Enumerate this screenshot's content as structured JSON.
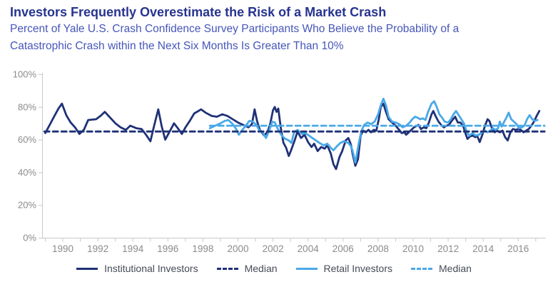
{
  "header": {
    "title": "Investors Frequently Overestimate the Risk of a Market Crash",
    "subtitle_line1": "Percent of Yale U.S. Crash Confidence Survey Participants Who Believe the Probability of a",
    "subtitle_line2": "Catastrophic Crash within the Next Six Months Is Greater Than 10%"
  },
  "colors": {
    "title_navy": "#27348f",
    "subtitle_blue": "#4656b8",
    "institutional_navy": "#1f3177",
    "retail_light_blue": "#49a8e8",
    "axis_grey": "#c9c9c9",
    "tick_label_grey": "#8b8b8b"
  },
  "chart_data": {
    "type": "line",
    "title": "Investors Frequently Overestimate the Risk of a Market Crash",
    "subtitle": "Percent of Yale U.S. Crash Confidence Survey Participants Who Believe the Probability of a Catastrophic Crash within the Next Six Months Is Greater Than 10%",
    "grid": false,
    "x_axis": {
      "label_years": [
        1990,
        1992,
        1994,
        1996,
        1998,
        2000,
        2002,
        2004,
        2006,
        2008,
        2010,
        2012,
        2014,
        2016
      ],
      "tick_start": 1989,
      "tick_end": 2017,
      "range": [
        1988.8,
        2017.6
      ]
    },
    "y_axis": {
      "tick_values": [
        0,
        20,
        40,
        60,
        80,
        100
      ],
      "tick_labels": [
        "0%",
        "20%",
        "40%",
        "60%",
        "80%",
        "100%"
      ],
      "range": [
        0,
        100
      ]
    },
    "series": [
      {
        "key": "institutional-investors-line",
        "name": "Institutional Investors",
        "color": "#1f3177",
        "style": "solid",
        "points": [
          [
            1989.0,
            64
          ],
          [
            1989.25,
            69
          ],
          [
            1989.5,
            74
          ],
          [
            1989.75,
            79
          ],
          [
            1989.95,
            82
          ],
          [
            1990.2,
            75
          ],
          [
            1990.45,
            70.5
          ],
          [
            1990.7,
            67.5
          ],
          [
            1990.95,
            63.5
          ],
          [
            1991.2,
            66
          ],
          [
            1991.45,
            72
          ],
          [
            1991.9,
            72.5
          ],
          [
            1992.15,
            74.5
          ],
          [
            1992.4,
            77
          ],
          [
            1992.7,
            73.5
          ],
          [
            1993.0,
            70
          ],
          [
            1993.3,
            67.5
          ],
          [
            1993.6,
            66
          ],
          [
            1993.85,
            68.5
          ],
          [
            1994.2,
            67
          ],
          [
            1994.5,
            66.5
          ],
          [
            1994.75,
            63
          ],
          [
            1995.0,
            59
          ],
          [
            1995.2,
            68
          ],
          [
            1995.45,
            78.5
          ],
          [
            1995.65,
            68
          ],
          [
            1995.85,
            60
          ],
          [
            1996.1,
            65
          ],
          [
            1996.35,
            70
          ],
          [
            1996.6,
            66.5
          ],
          [
            1996.8,
            63.5
          ],
          [
            1997.0,
            67.5
          ],
          [
            1997.25,
            71.5
          ],
          [
            1997.5,
            76
          ],
          [
            1997.9,
            78.5
          ],
          [
            1998.15,
            76.5
          ],
          [
            1998.5,
            74.5
          ],
          [
            1998.8,
            74
          ],
          [
            1999.1,
            75.5
          ],
          [
            1999.4,
            74.5
          ],
          [
            1999.7,
            72.5
          ],
          [
            2000.0,
            70.5
          ],
          [
            2000.3,
            69
          ],
          [
            2000.6,
            67.5
          ],
          [
            2000.8,
            69.5
          ],
          [
            2000.95,
            78.5
          ],
          [
            2001.1,
            71
          ],
          [
            2001.25,
            66
          ],
          [
            2001.5,
            62.5
          ],
          [
            2001.7,
            65
          ],
          [
            2001.85,
            70
          ],
          [
            2002.0,
            78
          ],
          [
            2002.1,
            80
          ],
          [
            2002.2,
            77
          ],
          [
            2002.3,
            79
          ],
          [
            2002.45,
            67
          ],
          [
            2002.6,
            58
          ],
          [
            2002.75,
            55
          ],
          [
            2002.9,
            50
          ],
          [
            2003.05,
            54
          ],
          [
            2003.25,
            60
          ],
          [
            2003.4,
            65
          ],
          [
            2003.6,
            61
          ],
          [
            2003.8,
            63
          ],
          [
            2004.0,
            58.5
          ],
          [
            2004.2,
            55.5
          ],
          [
            2004.35,
            57.5
          ],
          [
            2004.55,
            53
          ],
          [
            2004.75,
            55.5
          ],
          [
            2004.95,
            54.5
          ],
          [
            2005.1,
            56.5
          ],
          [
            2005.3,
            51.5
          ],
          [
            2005.45,
            45
          ],
          [
            2005.6,
            42
          ],
          [
            2005.8,
            49.5
          ],
          [
            2005.95,
            53
          ],
          [
            2006.15,
            59.5
          ],
          [
            2006.3,
            61
          ],
          [
            2006.45,
            57
          ],
          [
            2006.55,
            51
          ],
          [
            2006.7,
            44
          ],
          [
            2006.85,
            48
          ],
          [
            2007.0,
            62.5
          ],
          [
            2007.15,
            65.5
          ],
          [
            2007.3,
            64.5
          ],
          [
            2007.45,
            66
          ],
          [
            2007.6,
            64.5
          ],
          [
            2007.75,
            66
          ],
          [
            2007.9,
            65.5
          ],
          [
            2008.05,
            73
          ],
          [
            2008.15,
            80
          ],
          [
            2008.3,
            82
          ],
          [
            2008.45,
            77
          ],
          [
            2008.6,
            72.5
          ],
          [
            2008.8,
            70.5
          ],
          [
            2009.0,
            68.5
          ],
          [
            2009.2,
            66
          ],
          [
            2009.35,
            64
          ],
          [
            2009.5,
            64.5
          ],
          [
            2009.6,
            63
          ],
          [
            2009.75,
            64.5
          ],
          [
            2009.9,
            66
          ],
          [
            2010.05,
            67.5
          ],
          [
            2010.3,
            69
          ],
          [
            2010.45,
            66.5
          ],
          [
            2010.6,
            67.5
          ],
          [
            2010.75,
            67
          ],
          [
            2010.9,
            70.5
          ],
          [
            2011.05,
            75.5
          ],
          [
            2011.15,
            77.5
          ],
          [
            2011.3,
            74
          ],
          [
            2011.45,
            71
          ],
          [
            2011.6,
            69
          ],
          [
            2011.75,
            67.5
          ],
          [
            2011.9,
            68.5
          ],
          [
            2012.05,
            69
          ],
          [
            2012.2,
            71.5
          ],
          [
            2012.4,
            74
          ],
          [
            2012.55,
            70.5
          ],
          [
            2012.7,
            70.5
          ],
          [
            2012.85,
            68.5
          ],
          [
            2013.0,
            63.5
          ],
          [
            2013.1,
            60.5
          ],
          [
            2013.25,
            62
          ],
          [
            2013.4,
            62.5
          ],
          [
            2013.55,
            61.5
          ],
          [
            2013.65,
            62.5
          ],
          [
            2013.8,
            58.5
          ],
          [
            2013.95,
            63
          ],
          [
            2014.1,
            68.5
          ],
          [
            2014.25,
            72.5
          ],
          [
            2014.35,
            71.5
          ],
          [
            2014.5,
            67
          ],
          [
            2014.65,
            64.5
          ],
          [
            2014.8,
            65.5
          ],
          [
            2014.95,
            64.5
          ],
          [
            2015.1,
            65.5
          ],
          [
            2015.25,
            61.5
          ],
          [
            2015.4,
            59.5
          ],
          [
            2015.55,
            64.5
          ],
          [
            2015.7,
            66.5
          ],
          [
            2015.85,
            66
          ],
          [
            2016.0,
            66.5
          ],
          [
            2016.15,
            66
          ],
          [
            2016.3,
            64.5
          ],
          [
            2016.45,
            65.5
          ],
          [
            2016.6,
            66.5
          ],
          [
            2016.75,
            68.5
          ],
          [
            2016.9,
            71
          ],
          [
            2017.05,
            74.5
          ],
          [
            2017.2,
            77.5
          ]
        ]
      },
      {
        "key": "institutional-median-line",
        "name": "Median (Institutional)",
        "color": "#1f3177",
        "style": "dashed",
        "median_value": 65,
        "points": [
          [
            1988.95,
            65
          ],
          [
            2017.5,
            65
          ]
        ]
      },
      {
        "key": "retail-investors-line",
        "name": "Retail Investors",
        "color": "#49a8e8",
        "style": "solid",
        "points": [
          [
            1998.4,
            67
          ],
          [
            1998.7,
            68.5
          ],
          [
            1999.0,
            70
          ],
          [
            1999.25,
            71.5
          ],
          [
            1999.45,
            72
          ],
          [
            1999.7,
            69.5
          ],
          [
            1999.9,
            66.5
          ],
          [
            2000.05,
            63
          ],
          [
            2000.25,
            66
          ],
          [
            2000.45,
            68.5
          ],
          [
            2000.65,
            71.5
          ],
          [
            2000.85,
            71
          ],
          [
            2001.05,
            69
          ],
          [
            2001.2,
            66
          ],
          [
            2001.4,
            64.5
          ],
          [
            2001.6,
            61
          ],
          [
            2001.8,
            66
          ],
          [
            2001.95,
            71
          ],
          [
            2002.1,
            70.5
          ],
          [
            2002.3,
            66
          ],
          [
            2002.5,
            62.5
          ],
          [
            2002.7,
            60.5
          ],
          [
            2002.9,
            59.5
          ],
          [
            2003.05,
            58
          ],
          [
            2003.2,
            64.5
          ],
          [
            2003.4,
            66
          ],
          [
            2003.65,
            63.5
          ],
          [
            2003.85,
            64
          ],
          [
            2004.05,
            62.5
          ],
          [
            2004.25,
            61
          ],
          [
            2004.45,
            59.5
          ],
          [
            2004.65,
            58
          ],
          [
            2004.9,
            56.5
          ],
          [
            2005.1,
            57.5
          ],
          [
            2005.3,
            55
          ],
          [
            2005.45,
            53.5
          ],
          [
            2005.65,
            56
          ],
          [
            2005.85,
            58
          ],
          [
            2006.05,
            59
          ],
          [
            2006.3,
            58
          ],
          [
            2006.45,
            56
          ],
          [
            2006.55,
            53
          ],
          [
            2006.7,
            46
          ],
          [
            2006.9,
            58
          ],
          [
            2007.05,
            65.5
          ],
          [
            2007.2,
            69
          ],
          [
            2007.4,
            70.5
          ],
          [
            2007.6,
            69.5
          ],
          [
            2007.8,
            71
          ],
          [
            2008.0,
            75.5
          ],
          [
            2008.15,
            81
          ],
          [
            2008.3,
            85
          ],
          [
            2008.45,
            81
          ],
          [
            2008.6,
            74
          ],
          [
            2008.8,
            71
          ],
          [
            2009.0,
            70.5
          ],
          [
            2009.2,
            69.5
          ],
          [
            2009.4,
            67.5
          ],
          [
            2009.6,
            68.5
          ],
          [
            2009.8,
            70.5
          ],
          [
            2009.95,
            72.5
          ],
          [
            2010.1,
            74
          ],
          [
            2010.25,
            73.5
          ],
          [
            2010.4,
            72.5
          ],
          [
            2010.55,
            73
          ],
          [
            2010.7,
            72
          ],
          [
            2010.85,
            77
          ],
          [
            2011.05,
            82
          ],
          [
            2011.2,
            83.5
          ],
          [
            2011.35,
            80
          ],
          [
            2011.5,
            75.5
          ],
          [
            2011.65,
            73.5
          ],
          [
            2011.8,
            71
          ],
          [
            2012.0,
            70.5
          ],
          [
            2012.15,
            72.5
          ],
          [
            2012.3,
            75.5
          ],
          [
            2012.45,
            77.5
          ],
          [
            2012.6,
            75
          ],
          [
            2012.75,
            72.5
          ],
          [
            2012.9,
            70
          ],
          [
            2013.05,
            65
          ],
          [
            2013.2,
            62.5
          ],
          [
            2013.4,
            64
          ],
          [
            2013.55,
            62.5
          ],
          [
            2013.75,
            63
          ],
          [
            2013.95,
            64.5
          ],
          [
            2014.1,
            65.5
          ],
          [
            2014.25,
            64.5
          ],
          [
            2014.4,
            65.5
          ],
          [
            2014.55,
            67
          ],
          [
            2014.7,
            66
          ],
          [
            2014.85,
            67
          ],
          [
            2014.95,
            71
          ],
          [
            2015.05,
            68
          ],
          [
            2015.2,
            71
          ],
          [
            2015.35,
            74
          ],
          [
            2015.45,
            76.5
          ],
          [
            2015.6,
            72.5
          ],
          [
            2015.75,
            71
          ],
          [
            2015.9,
            69.5
          ],
          [
            2016.05,
            67
          ],
          [
            2016.2,
            67.5
          ],
          [
            2016.35,
            68.5
          ],
          [
            2016.5,
            72.5
          ],
          [
            2016.65,
            75
          ],
          [
            2016.8,
            72.5
          ],
          [
            2016.95,
            71.5
          ],
          [
            2017.1,
            72
          ]
        ]
      },
      {
        "key": "retail-median-line",
        "name": "Median (Retail)",
        "color": "#49a8e8",
        "style": "dashed",
        "median_value": 68.5,
        "points": [
          [
            1998.4,
            68.5
          ],
          [
            2017.5,
            68.5
          ]
        ]
      }
    ],
    "legend": {
      "position": "bottom",
      "entries": [
        {
          "label": "Institutional Investors",
          "color": "#1f3177",
          "dash": false
        },
        {
          "label": "Median",
          "color": "#1f3177",
          "dash": true
        },
        {
          "label": "Retail Investors",
          "color": "#49a8e8",
          "dash": false
        },
        {
          "label": "Median",
          "color": "#49a8e8",
          "dash": true
        }
      ]
    }
  }
}
